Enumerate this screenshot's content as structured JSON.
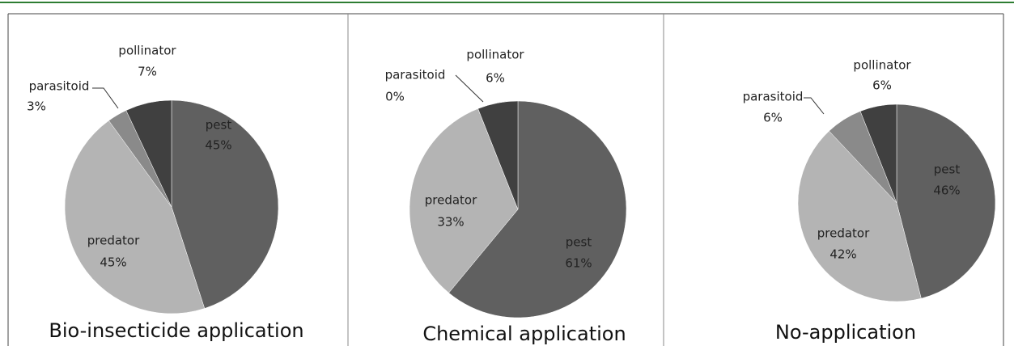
{
  "chart_data": [
    {
      "type": "pie",
      "title": "Bio-insecticide application",
      "categories": [
        "pest",
        "predator",
        "parasitoid",
        "pollinator"
      ],
      "values": [
        45,
        45,
        3,
        7
      ],
      "value_labels": [
        "45%",
        "45%",
        "3%",
        "7%"
      ],
      "colors": [
        "#606060",
        "#b4b4b4",
        "#8a8a8a",
        "#404040"
      ]
    },
    {
      "type": "pie",
      "title": "Chemical application",
      "categories": [
        "pest",
        "predator",
        "parasitoid",
        "pollinator"
      ],
      "values": [
        61,
        33,
        0,
        6
      ],
      "value_labels": [
        "61%",
        "33%",
        "0%",
        "6%"
      ],
      "colors": [
        "#606060",
        "#b4b4b4",
        "#8a8a8a",
        "#404040"
      ]
    },
    {
      "type": "pie",
      "title": "No-application",
      "categories": [
        "pest",
        "predator",
        "parasitoid",
        "pollinator"
      ],
      "values": [
        46,
        42,
        6,
        6
      ],
      "value_labels": [
        "46%",
        "42%",
        "6%",
        "6%"
      ],
      "colors": [
        "#606060",
        "#b4b4b4",
        "#8a8a8a",
        "#404040"
      ]
    }
  ]
}
